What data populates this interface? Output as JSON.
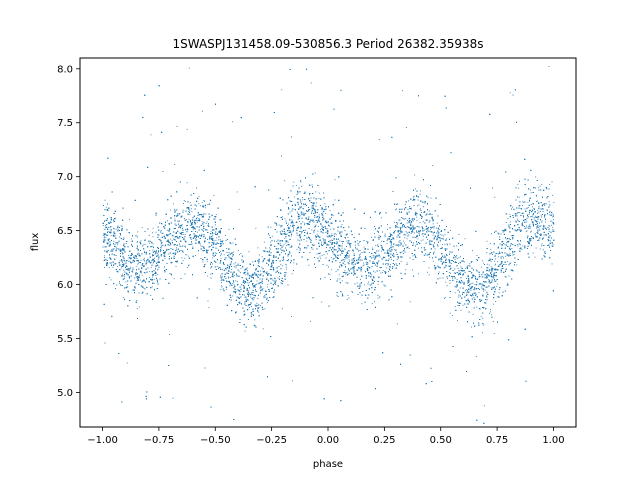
{
  "chart_data": {
    "type": "scatter",
    "title": "1SWASPJ131458.09-530856.3 Period 26382.35938s",
    "xlabel": "phase",
    "ylabel": "flux",
    "xlim": [
      -1.1,
      1.1
    ],
    "ylim": [
      4.68,
      8.1
    ],
    "grid": false,
    "legend": "none",
    "point_color": "#1f77b4",
    "x_ticks": [
      -1.0,
      -0.75,
      -0.5,
      -0.25,
      0.0,
      0.25,
      0.5,
      0.75,
      1.0
    ],
    "x_tick_labels": [
      "−1.00",
      "−0.75",
      "−0.50",
      "−0.25",
      "0.00",
      "0.25",
      "0.50",
      "0.75",
      "1.00"
    ],
    "y_ticks": [
      5.0,
      5.5,
      6.0,
      6.5,
      7.0,
      7.5,
      8.0
    ],
    "y_tick_labels": [
      "5.0",
      "5.5",
      "6.0",
      "6.5",
      "7.0",
      "7.5",
      "8.0"
    ],
    "phase_range": [
      -1.0,
      1.0
    ],
    "light_curve": {
      "description_points": [
        {
          "phase": -1.0,
          "flux": 6.45
        },
        {
          "phase": -0.85,
          "flux": 6.15
        },
        {
          "phase": -0.6,
          "flux": 6.55
        },
        {
          "phase": -0.35,
          "flux": 5.95
        },
        {
          "phase": -0.1,
          "flux": 6.6
        },
        {
          "phase": 0.15,
          "flux": 6.15
        },
        {
          "phase": 0.4,
          "flux": 6.55
        },
        {
          "phase": 0.65,
          "flux": 5.95
        },
        {
          "phase": 0.9,
          "flux": 6.6
        },
        {
          "phase": 1.0,
          "flux": 6.55
        }
      ],
      "scatter_sigma": 0.17,
      "n_points": 14000
    }
  }
}
